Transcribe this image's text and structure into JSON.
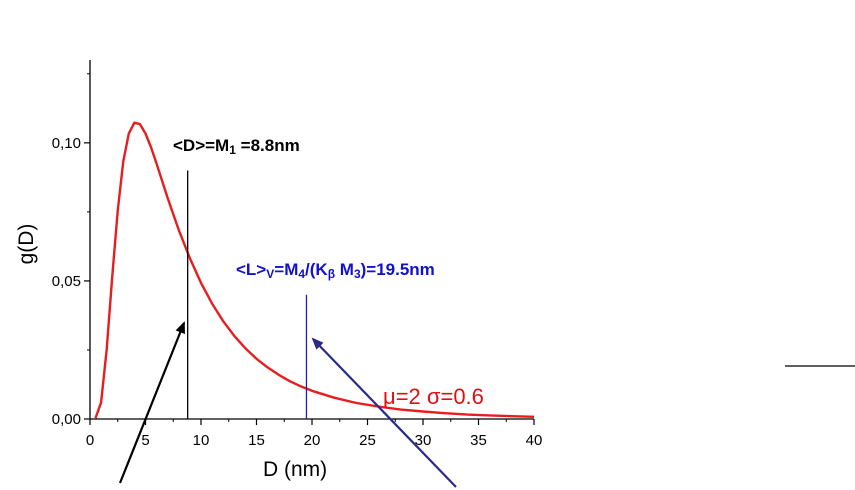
{
  "chart_data": {
    "type": "line",
    "title": "",
    "xlabel": "D  (nm)",
    "ylabel": "g(D)",
    "xlim": [
      0,
      40
    ],
    "ylim": [
      0,
      0.13
    ],
    "x_ticks": [
      0,
      5,
      10,
      15,
      20,
      25,
      30,
      35,
      40
    ],
    "x_tick_labels": [
      "0",
      "5",
      "10",
      "15",
      "20",
      "25",
      "30",
      "35",
      "40"
    ],
    "y_ticks": [
      0,
      0.05,
      0.1
    ],
    "y_tick_labels": [
      "0,00",
      "0,05",
      "0,10"
    ],
    "grid": false,
    "colors": {
      "curve": "#e61e1e",
      "mean_line": "#000000",
      "volume_line": "#2020c0",
      "arrow_black": "#000000",
      "arrow_blue": "#2a2a8a"
    },
    "series": [
      {
        "x": [
          0.5,
          1,
          1.5,
          2,
          2.5,
          3,
          3.5,
          4,
          4.5,
          5,
          5.5,
          6,
          7,
          8,
          9,
          10,
          11,
          12,
          13,
          14,
          15,
          16,
          17,
          18,
          19,
          20,
          22,
          24,
          26,
          28,
          30,
          32,
          34,
          36,
          38,
          40
        ],
        "y": [
          0.0003,
          0.006,
          0.0252,
          0.0514,
          0.0757,
          0.0933,
          0.1034,
          0.1073,
          0.1068,
          0.1034,
          0.0983,
          0.0924,
          0.08,
          0.0684,
          0.0582,
          0.0493,
          0.0418,
          0.0354,
          0.0301,
          0.0256,
          0.0218,
          0.0187,
          0.016,
          0.0137,
          0.0118,
          0.0102,
          0.0077,
          0.0058,
          0.0045,
          0.0034,
          0.0027,
          0.0021,
          0.0016,
          0.0013,
          0.001,
          0.0008
        ]
      }
    ],
    "vertical_lines": [
      {
        "x": 8.8,
        "y_top": 0.09
      },
      {
        "x": 19.5,
        "y_top": 0.045
      }
    ],
    "annotations": {
      "mean": {
        "pre": "<D>=M",
        "sub": "1",
        "post": " =8.8nm"
      },
      "volume": {
        "pre": "<L>",
        "sub1": "V",
        "mid1": "=M",
        "sub2": "4",
        "mid2": "/(K",
        "sub3": "β",
        "mid3": " M",
        "sub4": "3",
        "post": ")=19.5nm"
      },
      "params": {
        "mu": "μ",
        "mu_val": "=2 ",
        "sigma": "σ",
        "sigma_val": "=0.6"
      }
    }
  }
}
